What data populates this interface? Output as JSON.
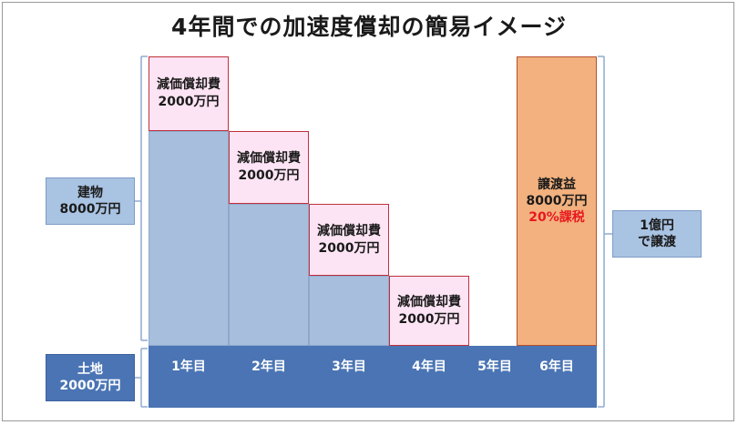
{
  "title": "4年間での加速度償却の簡易イメージ",
  "left_labels": {
    "building": [
      "建物",
      "8000万円"
    ],
    "land": [
      "土地",
      "2000万円"
    ]
  },
  "depreciation": [
    {
      "label": "減価償却費",
      "amount": "2000万円"
    },
    {
      "label": "減価償却費",
      "amount": "2000万円"
    },
    {
      "label": "減価償却費",
      "amount": "2000万円"
    },
    {
      "label": "減価償却費",
      "amount": "2000万円"
    }
  ],
  "gain": {
    "label": "譲渡益",
    "amount": "8000万円",
    "tax": "20%課税"
  },
  "right_label": [
    "1億円",
    "で譲渡"
  ],
  "years": [
    "1年目",
    "2年目",
    "3年目",
    "4年目",
    "5年目",
    "6年目"
  ],
  "colors": {
    "building": "#a7bedc",
    "depreciation_fill": "#fde4f4",
    "depreciation_border": "#c0303a",
    "gain_fill": "#f2b17e",
    "land": "#4a74b4",
    "tax_text": "#e8181f"
  }
}
